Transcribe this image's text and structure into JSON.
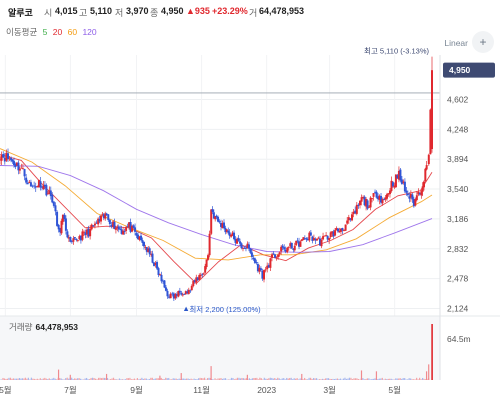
{
  "header": {
    "name": "알루코",
    "open_label": "시",
    "open_value": "4,015",
    "high_label": "고",
    "high_value": "5,110",
    "low_label": "저",
    "low_value": "3,970",
    "close_label": "종",
    "close_value": "4,950",
    "change": "▲935",
    "change_pct": "+23.29%",
    "volume_label": "거",
    "volume_value": "64,478,953"
  },
  "ma_legend": {
    "title": "이동평균",
    "items": [
      {
        "label": "5",
        "color": "#3fae49"
      },
      {
        "label": "20",
        "color": "#e0282e"
      },
      {
        "label": "60",
        "color": "#f39c12"
      },
      {
        "label": "120",
        "color": "#8e5ee8"
      }
    ]
  },
  "controls": {
    "scale_label": "Linear",
    "menu_icon": "plus-icon",
    "menu_glyph": "+"
  },
  "volume_panel": {
    "label": "거래량",
    "value": "64,478,953"
  },
  "chart_data": {
    "type": "candlestick",
    "price_axis": {
      "ticks": [
        "4,602",
        "4,248",
        "3,894",
        "3,540",
        "3,186",
        "2,832",
        "2,478",
        "2,124"
      ],
      "ylim": [
        2070,
        5130
      ]
    },
    "x_axis": {
      "ticks": [
        "5월",
        "7월",
        "9월",
        "11월",
        "2023",
        "3월",
        "5월"
      ],
      "range": [
        "2022-04-26",
        "2023-06-05"
      ]
    },
    "volume_axis": {
      "ticks": [
        "64.5m"
      ]
    },
    "last_price": {
      "value": 4950,
      "label": "4,950",
      "color": "#3e4a72"
    },
    "annotations": [
      {
        "text": "최고 5,110 (-3.13%)",
        "date": "2023-06-05",
        "value": 5110,
        "color": "#3e4a72"
      },
      {
        "text": "최저 2,200 (125.00%)",
        "date": "2022-10-13",
        "value": 2200,
        "color": "#2a57c9"
      }
    ],
    "reference_line": 4680,
    "colors": {
      "up": "#e0282e",
      "down": "#2f54d6"
    },
    "price_anchors": [
      [
        "2022-04-26",
        3960
      ],
      [
        "2022-05-05",
        3900
      ],
      [
        "2022-05-16",
        3780
      ],
      [
        "2022-05-25",
        3560
      ],
      [
        "2022-06-03",
        3620
      ],
      [
        "2022-06-14",
        3430
      ],
      [
        "2022-06-20",
        3020
      ],
      [
        "2022-06-24",
        3200
      ],
      [
        "2022-07-01",
        2870
      ],
      [
        "2022-07-08",
        2960
      ],
      [
        "2022-07-18",
        3030
      ],
      [
        "2022-07-27",
        3150
      ],
      [
        "2022-08-04",
        3230
      ],
      [
        "2022-08-10",
        3120
      ],
      [
        "2022-08-18",
        3050
      ],
      [
        "2022-08-25",
        3100
      ],
      [
        "2022-09-01",
        2980
      ],
      [
        "2022-09-08",
        2880
      ],
      [
        "2022-09-16",
        2700
      ],
      [
        "2022-09-23",
        2500
      ],
      [
        "2022-09-30",
        2290
      ],
      [
        "2022-10-06",
        2260
      ],
      [
        "2022-10-13",
        2330
      ],
      [
        "2022-10-20",
        2320
      ],
      [
        "2022-10-27",
        2470
      ],
      [
        "2022-11-03",
        2560
      ],
      [
        "2022-11-07",
        2760
      ],
      [
        "2022-11-10",
        3300
      ],
      [
        "2022-11-15",
        3170
      ],
      [
        "2022-11-22",
        3090
      ],
      [
        "2022-11-30",
        2980
      ],
      [
        "2022-12-07",
        2870
      ],
      [
        "2022-12-14",
        2850
      ],
      [
        "2022-12-21",
        2670
      ],
      [
        "2022-12-28",
        2520
      ],
      [
        "2023-01-06",
        2720
      ],
      [
        "2023-01-16",
        2820
      ],
      [
        "2023-01-26",
        2860
      ],
      [
        "2023-02-03",
        2920
      ],
      [
        "2023-02-10",
        2980
      ],
      [
        "2023-02-20",
        2920
      ],
      [
        "2023-03-02",
        3000
      ],
      [
        "2023-03-13",
        3080
      ],
      [
        "2023-03-22",
        3190
      ],
      [
        "2023-03-31",
        3420
      ],
      [
        "2023-04-07",
        3350
      ],
      [
        "2023-04-14",
        3500
      ],
      [
        "2023-04-21",
        3400
      ],
      [
        "2023-04-28",
        3600
      ],
      [
        "2023-05-05",
        3700
      ],
      [
        "2023-05-12",
        3500
      ],
      [
        "2023-05-19",
        3380
      ],
      [
        "2023-05-26",
        3560
      ],
      [
        "2023-05-31",
        3800
      ],
      [
        "2023-06-02",
        4015
      ],
      [
        "2023-06-05",
        4950
      ]
    ],
    "moving_averages": [
      {
        "name": "20",
        "color": "#e0282e",
        "points": [
          [
            "2022-04-26",
            3950
          ],
          [
            "2022-05-16",
            3880
          ],
          [
            "2022-06-03",
            3620
          ],
          [
            "2022-06-24",
            3350
          ],
          [
            "2022-07-15",
            3080
          ],
          [
            "2022-08-04",
            3100
          ],
          [
            "2022-08-25",
            3080
          ],
          [
            "2022-09-15",
            2960
          ],
          [
            "2022-10-06",
            2680
          ],
          [
            "2022-10-27",
            2420
          ],
          [
            "2022-11-17",
            2680
          ],
          [
            "2022-12-08",
            2880
          ],
          [
            "2022-12-29",
            2760
          ],
          [
            "2023-01-19",
            2690
          ],
          [
            "2023-02-09",
            2840
          ],
          [
            "2023-03-02",
            2930
          ],
          [
            "2023-03-23",
            3060
          ],
          [
            "2023-04-13",
            3300
          ],
          [
            "2023-05-04",
            3460
          ],
          [
            "2023-05-25",
            3520
          ],
          [
            "2023-06-05",
            3740
          ]
        ]
      },
      {
        "name": "60",
        "color": "#f39c12",
        "points": [
          [
            "2022-04-26",
            4020
          ],
          [
            "2022-05-26",
            3860
          ],
          [
            "2022-06-26",
            3580
          ],
          [
            "2022-07-26",
            3250
          ],
          [
            "2022-08-26",
            3080
          ],
          [
            "2022-09-26",
            2930
          ],
          [
            "2022-10-26",
            2720
          ],
          [
            "2022-11-26",
            2700
          ],
          [
            "2022-12-26",
            2760
          ],
          [
            "2023-01-26",
            2760
          ],
          [
            "2023-02-26",
            2820
          ],
          [
            "2023-03-26",
            2950
          ],
          [
            "2023-04-26",
            3200
          ],
          [
            "2023-05-26",
            3390
          ],
          [
            "2023-06-05",
            3470
          ]
        ]
      },
      {
        "name": "120",
        "color": "#8e5ee8",
        "points": [
          [
            "2022-04-26",
            3820
          ],
          [
            "2022-06-01",
            3810
          ],
          [
            "2022-07-01",
            3700
          ],
          [
            "2022-08-01",
            3520
          ],
          [
            "2022-09-01",
            3300
          ],
          [
            "2022-10-01",
            3140
          ],
          [
            "2022-11-01",
            3000
          ],
          [
            "2022-12-01",
            2880
          ],
          [
            "2023-01-01",
            2800
          ],
          [
            "2023-02-01",
            2790
          ],
          [
            "2023-03-01",
            2800
          ],
          [
            "2023-04-01",
            2880
          ],
          [
            "2023-05-01",
            3020
          ],
          [
            "2023-06-05",
            3190
          ]
        ]
      }
    ],
    "volume_spikes": [
      [
        "2022-06-20",
        12
      ],
      [
        "2022-07-01",
        6
      ],
      [
        "2022-08-04",
        7
      ],
      [
        "2022-09-23",
        5
      ],
      [
        "2022-10-13",
        8
      ],
      [
        "2022-11-10",
        16
      ],
      [
        "2022-12-14",
        6
      ],
      [
        "2023-02-03",
        7
      ],
      [
        "2023-03-31",
        11
      ],
      [
        "2023-04-14",
        10
      ],
      [
        "2023-05-31",
        10
      ],
      [
        "2023-06-02",
        18
      ],
      [
        "2023-06-05",
        64.5
      ]
    ]
  }
}
